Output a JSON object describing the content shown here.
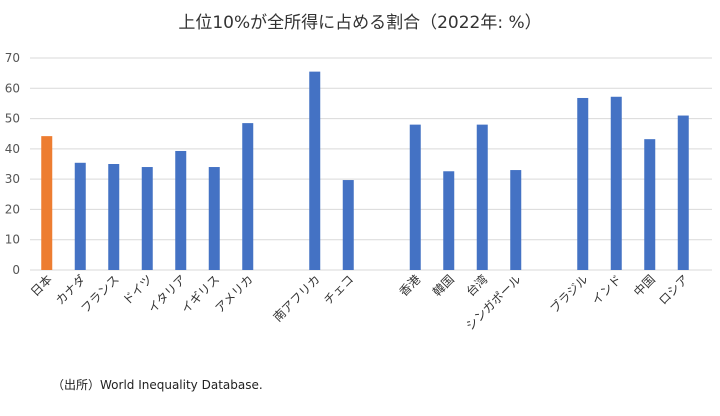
{
  "title": "上位10%が全所得に占める割合（2022年: %）",
  "source": "（出所）World Inequality Database.",
  "colors": {
    "highlight": "#ED7D31",
    "default": "#4472C4",
    "grid": "#D9D9D9"
  },
  "chart_data": {
    "type": "bar",
    "title": "上位10%が全所得に占める割合（2022年: %）",
    "xlabel": "",
    "ylabel": "",
    "ylim": [
      0,
      70
    ],
    "yticks": [
      0,
      10,
      20,
      30,
      40,
      50,
      60,
      70
    ],
    "grid": true,
    "legend": "none",
    "groups": [
      [
        "日本",
        "カナダ",
        "フランス",
        "ドイツ",
        "イタリア",
        "イギリス",
        "アメリカ"
      ],
      [
        "南アフリカ",
        "チェコ"
      ],
      [
        "香港",
        "韓国",
        "台湾",
        "シンガポール"
      ],
      [
        "ブラジル",
        "インド",
        "中国",
        "ロシア"
      ]
    ],
    "categories": [
      "日本",
      "カナダ",
      "フランス",
      "ドイツ",
      "イタリア",
      "イギリス",
      "アメリカ",
      "南アフリカ",
      "チェコ",
      "香港",
      "韓国",
      "台湾",
      "シンガポール",
      "ブラジル",
      "インド",
      "中国",
      "ロシア"
    ],
    "values": [
      44.2,
      35.4,
      35.0,
      34.0,
      39.3,
      34.0,
      48.5,
      65.5,
      29.7,
      48.0,
      32.6,
      48.0,
      33.0,
      56.8,
      57.2,
      43.2,
      51.0
    ],
    "highlight": "日本"
  }
}
